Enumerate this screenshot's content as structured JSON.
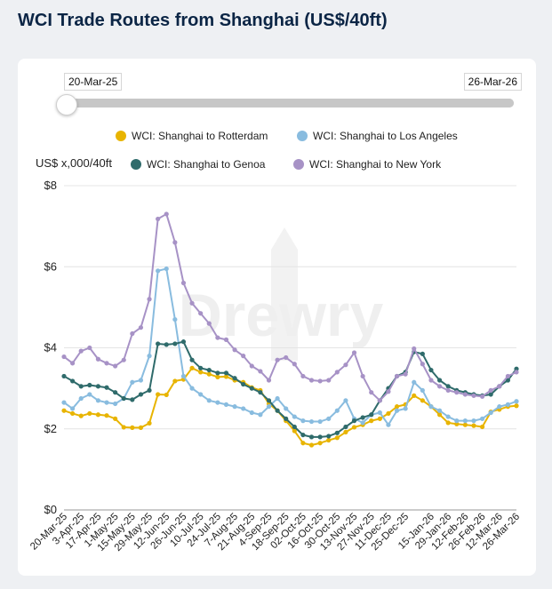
{
  "title": "WCI Trade Routes from Shanghai (US$/40ft)",
  "range": {
    "start": "20-Mar-25",
    "end": "26-Mar-26",
    "start_fraction": 0,
    "end_fraction": 1
  },
  "chart_data": {
    "type": "line",
    "title": "WCI Trade Routes from Shanghai (US$/40ft)",
    "ylabel": "US$ x,000/40ft",
    "xlabel": "",
    "ylim": [
      0,
      8
    ],
    "yticks": [
      {
        "value": 0,
        "label": "$0"
      },
      {
        "value": 2,
        "label": "$2"
      },
      {
        "value": 4,
        "label": "$4"
      },
      {
        "value": 6,
        "label": "$6"
      },
      {
        "value": 8,
        "label": "$8"
      }
    ],
    "x": [
      "20-Mar-25",
      "27-Mar-25",
      "3-Apr-25",
      "10-Apr-25",
      "17-Apr-25",
      "24-Apr-25",
      "1-May-25",
      "8-May-25",
      "15-May-25",
      "22-May-25",
      "29-May-25",
      "5-Jun-25",
      "12-Jun-25",
      "19-Jun-25",
      "26-Jun-25",
      "3-Jul-25",
      "10-Jul-25",
      "17-Jul-25",
      "24-Jul-25",
      "31-Jul-25",
      "7-Aug-25",
      "14-Aug-25",
      "21-Aug-25",
      "28-Aug-25",
      "4-Sep-25",
      "11-Sep-25",
      "18-Sep-25",
      "25-Sep-25",
      "02-Oct-25",
      "09-Oct-25",
      "16-Oct-25",
      "23-Oct-25",
      "30-Oct-25",
      "06-Nov-25",
      "13-Nov-25",
      "20-Nov-25",
      "27-Nov-25",
      "04-Dec-25",
      "11-Dec-25",
      "18-Dec-25",
      "25-Dec-25",
      "01-Jan-26",
      "08-Jan-26",
      "15-Jan-26",
      "22-Jan-26",
      "29-Jan-26",
      "05-Feb-26",
      "12-Feb-26",
      "19-Feb-26",
      "26-Feb-26",
      "05-Mar-26",
      "12-Mar-26",
      "19-Mar-26",
      "26-Mar-26"
    ],
    "xtick_labels": [
      "20-Mar-25",
      "3-Apr-25",
      "17-Apr-25",
      "1-May-25",
      "15-May-25",
      "29-May-25",
      "12-Jun-25",
      "26-Jun-25",
      "10-Jul-25",
      "24-Jul-25",
      "7-Aug-25",
      "21-Aug-25",
      "4-Sep-25",
      "18-Sep-25",
      "02-Oct-25",
      "16-Oct-25",
      "30-Oct-25",
      "13-Nov-25",
      "27-Nov-25",
      "11-Dec-25",
      "25-Dec-25",
      "15-Jan-26",
      "29-Jan-26",
      "12-Feb-26",
      "26-Feb-26",
      "12-Mar-26",
      "26-Mar-26"
    ],
    "series": [
      {
        "name": "WCI: Shanghai to Rotterdam",
        "color": "#e8b400",
        "values": [
          2.45,
          2.38,
          2.32,
          2.38,
          2.35,
          2.33,
          2.25,
          2.04,
          2.03,
          2.03,
          2.14,
          2.85,
          2.84,
          3.18,
          3.22,
          3.5,
          3.4,
          3.35,
          3.28,
          3.29,
          3.2,
          3.15,
          3.02,
          2.95,
          2.62,
          2.45,
          2.2,
          1.95,
          1.65,
          1.6,
          1.65,
          1.72,
          1.78,
          1.92,
          2.04,
          2.1,
          2.2,
          2.25,
          2.38,
          2.55,
          2.6,
          2.82,
          2.7,
          2.55,
          2.35,
          2.15,
          2.12,
          2.1,
          2.08,
          2.05,
          2.42,
          2.48,
          2.55,
          2.57
        ]
      },
      {
        "name": "WCI: Shanghai to Los Angeles",
        "color": "#89bcdf",
        "values": [
          2.65,
          2.5,
          2.75,
          2.85,
          2.7,
          2.65,
          2.62,
          2.75,
          3.15,
          3.2,
          3.8,
          5.9,
          5.95,
          4.7,
          3.3,
          3.0,
          2.85,
          2.7,
          2.65,
          2.6,
          2.55,
          2.5,
          2.4,
          2.35,
          2.55,
          2.75,
          2.5,
          2.3,
          2.2,
          2.18,
          2.18,
          2.25,
          2.45,
          2.7,
          2.25,
          2.15,
          2.35,
          2.4,
          2.1,
          2.45,
          2.5,
          3.15,
          2.95,
          2.55,
          2.45,
          2.3,
          2.2,
          2.2,
          2.2,
          2.25,
          2.4,
          2.55,
          2.6,
          2.68
        ]
      },
      {
        "name": "WCI: Shanghai to Genoa",
        "color": "#2f6b6b",
        "values": [
          3.3,
          3.18,
          3.05,
          3.08,
          3.05,
          3.02,
          2.9,
          2.75,
          2.72,
          2.85,
          2.95,
          4.1,
          4.08,
          4.1,
          4.15,
          3.7,
          3.5,
          3.45,
          3.38,
          3.38,
          3.25,
          3.1,
          3.0,
          2.9,
          2.7,
          2.45,
          2.25,
          2.05,
          1.85,
          1.8,
          1.8,
          1.82,
          1.9,
          2.05,
          2.2,
          2.28,
          2.35,
          2.7,
          3.0,
          3.3,
          3.4,
          3.9,
          3.85,
          3.45,
          3.2,
          3.05,
          2.95,
          2.9,
          2.85,
          2.82,
          2.85,
          3.05,
          3.2,
          3.48
        ]
      },
      {
        "name": "WCI: Shanghai to New York",
        "color": "#a792c6",
        "values": [
          3.78,
          3.62,
          3.92,
          4.0,
          3.72,
          3.62,
          3.55,
          3.7,
          4.35,
          4.5,
          5.2,
          7.18,
          7.3,
          6.6,
          5.6,
          5.1,
          4.85,
          4.6,
          4.25,
          4.2,
          3.95,
          3.8,
          3.55,
          3.42,
          3.2,
          3.7,
          3.76,
          3.6,
          3.3,
          3.2,
          3.18,
          3.2,
          3.4,
          3.58,
          3.88,
          3.3,
          2.9,
          2.7,
          2.92,
          3.3,
          3.35,
          3.98,
          3.6,
          3.2,
          3.05,
          2.95,
          2.9,
          2.85,
          2.82,
          2.8,
          2.95,
          3.05,
          3.3,
          3.4
        ]
      }
    ]
  }
}
